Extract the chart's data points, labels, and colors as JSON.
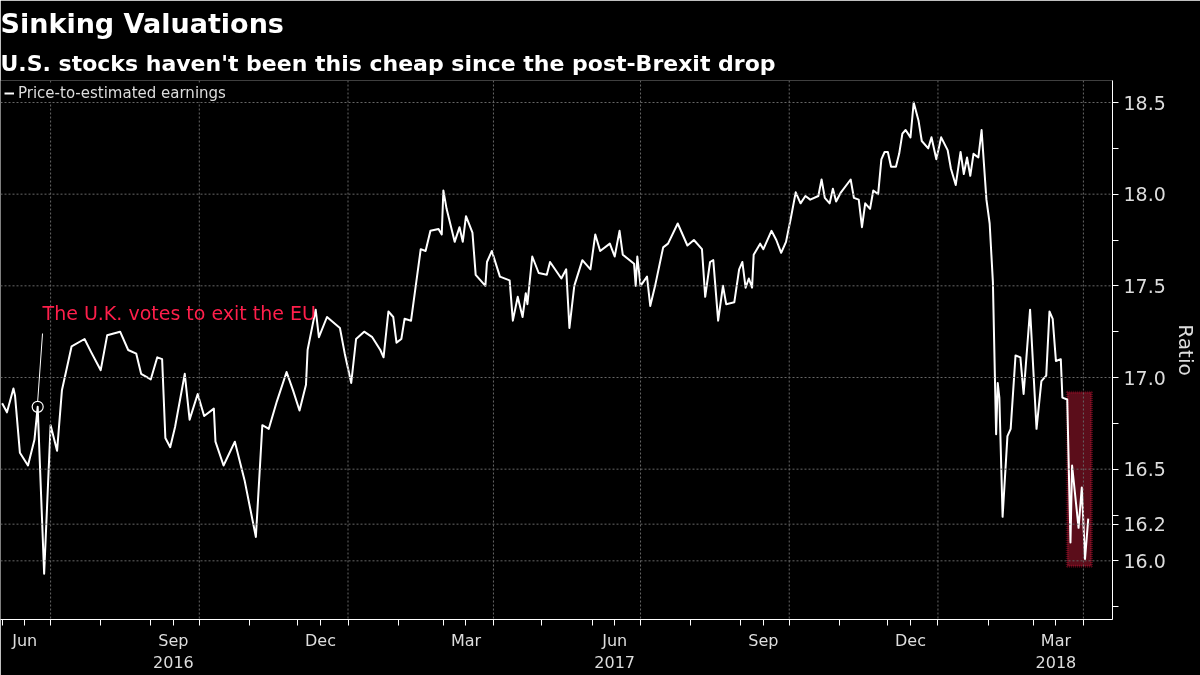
{
  "chart_data": {
    "type": "line",
    "title": "Sinking Valuations",
    "subtitle": "U.S. stocks haven't been this cheap since the post-Brexit drop",
    "ylabel": "Ratio",
    "x": [
      "2016-06-01",
      "2016-06-04",
      "2016-06-08",
      "2016-06-09",
      "2016-06-12",
      "2016-06-17",
      "2016-06-21",
      "2016-06-23",
      "2016-06-27",
      "2016-07-01",
      "2016-07-05",
      "2016-07-08",
      "2016-07-12",
      "2016-07-14",
      "2016-07-22",
      "2016-07-26",
      "2016-08-01",
      "2016-08-05",
      "2016-08-13",
      "2016-08-18",
      "2016-08-23",
      "2016-08-26",
      "2016-09-01",
      "2016-09-05",
      "2016-09-08",
      "2016-09-10",
      "2016-09-13",
      "2016-09-16",
      "2016-09-22",
      "2016-09-25",
      "2016-09-30",
      "2016-10-04",
      "2016-10-10",
      "2016-10-11",
      "2016-10-16",
      "2016-10-23",
      "2016-10-29",
      "2016-11-05",
      "2016-11-09",
      "2016-11-13",
      "2016-11-18",
      "2016-11-24",
      "2016-11-28",
      "2016-12-02",
      "2016-12-06",
      "2016-12-07",
      "2016-12-12",
      "2016-12-14",
      "2016-12-19",
      "2016-12-27",
      "2016-12-30",
      "2017-01-03",
      "2017-01-06",
      "2017-01-11",
      "2017-01-16",
      "2017-01-21",
      "2017-01-23",
      "2017-01-26",
      "2017-01-29",
      "2017-01-31",
      "2017-02-03",
      "2017-02-05",
      "2017-02-09",
      "2017-02-15",
      "2017-02-18",
      "2017-02-21",
      "2017-02-26",
      "2017-02-28",
      "2017-03-01",
      "2017-03-03",
      "2017-03-08",
      "2017-03-11",
      "2017-03-13",
      "2017-03-15",
      "2017-03-19",
      "2017-03-21",
      "2017-03-27",
      "2017-03-28",
      "2017-03-31",
      "2017-04-05",
      "2017-04-11",
      "2017-04-13",
      "2017-04-16",
      "2017-04-19",
      "2017-04-21",
      "2017-04-22",
      "2017-04-25",
      "2017-04-29",
      "2017-05-04",
      "2017-05-06",
      "2017-05-13",
      "2017-05-16",
      "2017-05-18",
      "2017-05-21",
      "2017-05-26",
      "2017-05-31",
      "2017-06-03",
      "2017-06-06",
      "2017-06-12",
      "2017-06-15",
      "2017-06-18",
      "2017-06-20",
      "2017-06-27",
      "2017-06-28",
      "2017-06-29",
      "2017-07-01",
      "2017-07-05",
      "2017-07-07",
      "2017-07-10",
      "2017-07-15",
      "2017-07-18",
      "2017-07-24",
      "2017-07-30",
      "2017-08-03",
      "2017-08-08",
      "2017-08-10",
      "2017-08-13",
      "2017-08-15",
      "2017-08-18",
      "2017-08-21",
      "2017-08-23",
      "2017-08-28",
      "2017-08-31",
      "2017-09-02",
      "2017-09-04",
      "2017-09-06",
      "2017-09-08",
      "2017-09-09",
      "2017-09-13",
      "2017-09-15",
      "2017-09-20",
      "2017-09-23",
      "2017-09-26",
      "2017-09-29",
      "2017-10-02",
      "2017-10-05",
      "2017-10-08",
      "2017-10-11",
      "2017-10-14",
      "2017-10-19",
      "2017-10-21",
      "2017-10-23",
      "2017-10-26",
      "2017-10-28",
      "2017-10-30",
      "2017-11-02",
      "2017-11-08",
      "2017-11-10",
      "2017-11-13",
      "2017-11-15",
      "2017-11-17",
      "2017-11-20",
      "2017-11-22",
      "2017-11-25",
      "2017-11-27",
      "2017-11-29",
      "2017-12-01",
      "2017-12-03",
      "2017-12-06",
      "2017-12-08",
      "2017-12-10",
      "2017-12-12",
      "2017-12-15",
      "2017-12-17",
      "2017-12-20",
      "2017-12-22",
      "2017-12-26",
      "2017-12-28",
      "2017-12-31",
      "2018-01-03",
      "2018-01-07",
      "2018-01-09",
      "2018-01-12",
      "2018-01-15",
      "2018-01-17",
      "2018-01-19",
      "2018-01-21",
      "2018-01-23",
      "2018-01-26",
      "2018-01-28",
      "2018-01-31",
      "2018-02-02",
      "2018-02-04",
      "2018-02-06",
      "2018-02-07",
      "2018-02-08",
      "2018-02-10",
      "2018-02-13",
      "2018-02-15",
      "2018-02-18",
      "2018-02-21",
      "2018-02-23",
      "2018-02-27",
      "2018-03-03",
      "2018-03-06",
      "2018-03-09",
      "2018-03-11",
      "2018-03-13",
      "2018-03-15",
      "2018-03-18",
      "2018-03-19",
      "2018-03-22",
      "2018-03-24",
      "2018-03-25",
      "2018-03-29",
      "2018-03-31",
      "2018-04-02",
      "2018-04-04"
    ],
    "series": [
      {
        "name": "Price-to-estimated earnings",
        "color": "#ffffff",
        "values": [
          16.86,
          16.81,
          16.94,
          16.9,
          16.59,
          16.52,
          16.66,
          16.84,
          15.93,
          16.74,
          16.6,
          16.93,
          17.09,
          17.17,
          17.21,
          17.14,
          17.04,
          17.23,
          17.25,
          17.15,
          17.13,
          17.02,
          16.99,
          17.11,
          17.1,
          16.67,
          16.62,
          16.73,
          17.02,
          16.77,
          16.91,
          16.79,
          16.83,
          16.65,
          16.52,
          16.65,
          16.44,
          16.13,
          16.74,
          16.72,
          16.87,
          17.03,
          16.93,
          16.82,
          16.96,
          17.15,
          17.37,
          17.22,
          17.33,
          17.27,
          17.13,
          16.97,
          17.21,
          17.25,
          17.22,
          17.15,
          17.11,
          17.36,
          17.33,
          17.19,
          17.21,
          17.32,
          17.31,
          17.7,
          17.69,
          17.8,
          17.81,
          17.78,
          18.02,
          17.92,
          17.74,
          17.82,
          17.74,
          17.88,
          17.79,
          17.56,
          17.5,
          17.63,
          17.69,
          17.55,
          17.53,
          17.31,
          17.44,
          17.33,
          17.46,
          17.4,
          17.66,
          17.57,
          17.56,
          17.63,
          17.54,
          17.59,
          17.27,
          17.5,
          17.64,
          17.59,
          17.78,
          17.69,
          17.73,
          17.66,
          17.8,
          17.67,
          17.62,
          17.5,
          17.66,
          17.5,
          17.55,
          17.39,
          17.5,
          17.71,
          17.73,
          17.84,
          17.72,
          17.75,
          17.7,
          17.44,
          17.63,
          17.64,
          17.31,
          17.5,
          17.4,
          17.41,
          17.59,
          17.63,
          17.49,
          17.54,
          17.49,
          17.67,
          17.73,
          17.7,
          17.8,
          17.75,
          17.68,
          17.74,
          17.87,
          18.01,
          17.95,
          17.99,
          17.97,
          17.99,
          18.08,
          17.98,
          17.95,
          18.03,
          17.96,
          18.01,
          18.08,
          17.98,
          17.97,
          17.82,
          17.95,
          17.92,
          18.02,
          18.0,
          18.19,
          18.23,
          18.23,
          18.15,
          18.15,
          18.22,
          18.33,
          18.35,
          18.31,
          18.5,
          18.4,
          18.29,
          18.25,
          18.31,
          18.19,
          18.31,
          18.24,
          18.14,
          18.05,
          18.23,
          18.11,
          18.2,
          18.1,
          18.22,
          18.2,
          18.35,
          17.97,
          17.84,
          17.52,
          16.69,
          16.97,
          16.89,
          16.24,
          16.68,
          16.72,
          17.12,
          17.11,
          16.91,
          17.37,
          16.72,
          16.98,
          17.01,
          17.36,
          17.32,
          17.09,
          17.1,
          16.89,
          16.88,
          16.1,
          16.52,
          16.18,
          16.4,
          16.01,
          16.23
        ]
      }
    ],
    "xlim": [
      "2016-05-31",
      "2018-04-19"
    ],
    "ylim": [
      15.68,
      18.62
    ],
    "xticks": [
      {
        "value": "2016-06-01",
        "label": null
      },
      {
        "value": "2016-06-15",
        "label": "Jun"
      },
      {
        "value": "2016-07-01",
        "label": null
      },
      {
        "value": "2016-08-01",
        "label": null
      },
      {
        "value": "2016-09-01",
        "label": null
      },
      {
        "value": "2016-09-15",
        "label": "Sep\n2016"
      },
      {
        "value": "2016-10-01",
        "label": null
      },
      {
        "value": "2016-11-01",
        "label": null
      },
      {
        "value": "2016-12-01",
        "label": null
      },
      {
        "value": "2016-12-15",
        "label": "Dec"
      },
      {
        "value": "2017-01-01",
        "label": null
      },
      {
        "value": "2017-02-01",
        "label": null
      },
      {
        "value": "2017-03-01",
        "label": null
      },
      {
        "value": "2017-03-15",
        "label": "Mar"
      },
      {
        "value": "2017-04-01",
        "label": null
      },
      {
        "value": "2017-05-01",
        "label": null
      },
      {
        "value": "2017-06-01",
        "label": null
      },
      {
        "value": "2017-06-15",
        "label": "Jun\n2017"
      },
      {
        "value": "2017-07-01",
        "label": null
      },
      {
        "value": "2017-08-01",
        "label": null
      },
      {
        "value": "2017-09-01",
        "label": null
      },
      {
        "value": "2017-09-15",
        "label": "Sep"
      },
      {
        "value": "2017-10-01",
        "label": null
      },
      {
        "value": "2017-11-01",
        "label": null
      },
      {
        "value": "2017-12-01",
        "label": null
      },
      {
        "value": "2017-12-15",
        "label": "Dec"
      },
      {
        "value": "2018-01-01",
        "label": null
      },
      {
        "value": "2018-02-01",
        "label": null
      },
      {
        "value": "2018-03-01",
        "label": null
      },
      {
        "value": "2018-03-15",
        "label": "Mar\n2018"
      },
      {
        "value": "2018-04-01",
        "label": null
      }
    ],
    "yticks": [
      {
        "value": 15.75,
        "label": null
      },
      {
        "value": 16,
        "label": "16.0"
      },
      {
        "value": 16.2,
        "label": "16.2"
      },
      {
        "value": 16.25,
        "label": null
      },
      {
        "value": 16.5,
        "label": "16.5"
      },
      {
        "value": 16.75,
        "label": null
      },
      {
        "value": 17,
        "label": "17.0"
      },
      {
        "value": 17.25,
        "label": null
      },
      {
        "value": 17.5,
        "label": "17.5"
      },
      {
        "value": 17.75,
        "label": null
      },
      {
        "value": 18,
        "label": "18.0"
      },
      {
        "value": 18.25,
        "label": null
      },
      {
        "value": 18.5,
        "label": "18.5"
      }
    ],
    "grid": true,
    "legend": "top left",
    "bands": [
      {
        "axis": "x",
        "from": "2018-03-22",
        "to": "2018-04-06",
        "color": "#6b0f1e"
      }
    ],
    "annotations": [
      {
        "text": "The U.K. votes to exit the EU",
        "x": "2016-06-23",
        "y": 16.84
      }
    ]
  }
}
